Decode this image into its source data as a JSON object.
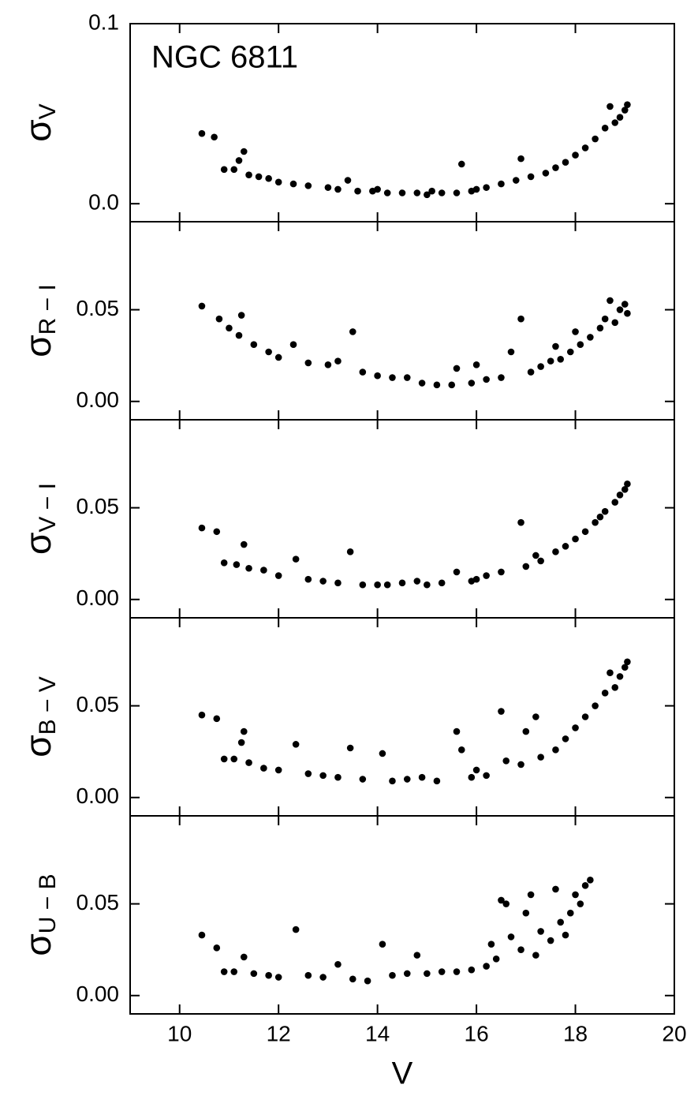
{
  "chart_data": [
    {
      "type": "scatter",
      "annotation": "NGC 6811",
      "ylabel": "σ",
      "ylabel_sub": "V",
      "color": "#000000",
      "xlim": [
        9,
        20
      ],
      "xticks": [
        10,
        12,
        14,
        16,
        18,
        20
      ],
      "ylim": [
        -0.01,
        0.1
      ],
      "yticks": [
        {
          "value": 0,
          "label": "0.0"
        },
        0.1
      ],
      "x": [
        10.45,
        10.7,
        10.9,
        11.1,
        11.2,
        11.3,
        11.4,
        11.6,
        11.8,
        12.0,
        12.3,
        12.6,
        13.0,
        13.2,
        13.4,
        13.6,
        13.9,
        14.2,
        14.5,
        14.8,
        15.0,
        15.3,
        15.6,
        15.7,
        15.9,
        16.2,
        16.5,
        16.8,
        16.9,
        17.1,
        17.4,
        17.6,
        17.8,
        18.0,
        18.2,
        18.4,
        18.6,
        18.7,
        18.8,
        18.9,
        19.0,
        19.05,
        14.0,
        15.1,
        16.0
      ],
      "values": [
        0.039,
        0.037,
        0.019,
        0.019,
        0.024,
        0.029,
        0.016,
        0.015,
        0.014,
        0.012,
        0.011,
        0.01,
        0.009,
        0.008,
        0.013,
        0.007,
        0.007,
        0.006,
        0.006,
        0.006,
        0.005,
        0.006,
        0.006,
        0.022,
        0.007,
        0.009,
        0.011,
        0.013,
        0.025,
        0.015,
        0.017,
        0.02,
        0.023,
        0.027,
        0.031,
        0.036,
        0.042,
        0.054,
        0.045,
        0.048,
        0.052,
        0.055,
        0.008,
        0.007,
        0.008
      ]
    },
    {
      "type": "scatter",
      "ylabel": "σ",
      "ylabel_sub": "R − I",
      "color": "#000000",
      "xlim": [
        9,
        20
      ],
      "xticks": [
        10,
        12,
        14,
        16,
        18,
        20
      ],
      "ylim": [
        -0.01,
        0.098
      ],
      "yticks": [
        {
          "value": 0,
          "label": "0.00"
        },
        0.05
      ],
      "x": [
        10.45,
        10.8,
        11.0,
        11.2,
        11.25,
        11.5,
        11.8,
        12.0,
        12.3,
        12.6,
        13.0,
        13.2,
        13.5,
        13.7,
        14.0,
        14.3,
        14.6,
        14.9,
        15.2,
        15.5,
        15.6,
        15.9,
        16.2,
        16.5,
        16.7,
        16.9,
        17.1,
        17.3,
        17.5,
        17.7,
        17.9,
        18.1,
        18.3,
        18.5,
        18.6,
        18.7,
        18.8,
        18.9,
        19.0,
        19.05,
        16.0,
        17.6,
        18.0
      ],
      "values": [
        0.052,
        0.045,
        0.04,
        0.036,
        0.047,
        0.031,
        0.027,
        0.024,
        0.031,
        0.021,
        0.02,
        0.022,
        0.038,
        0.016,
        0.014,
        0.013,
        0.013,
        0.01,
        0.009,
        0.009,
        0.018,
        0.01,
        0.012,
        0.013,
        0.027,
        0.045,
        0.016,
        0.019,
        0.022,
        0.023,
        0.027,
        0.031,
        0.035,
        0.04,
        0.045,
        0.055,
        0.043,
        0.05,
        0.053,
        0.048,
        0.02,
        0.03,
        0.038
      ]
    },
    {
      "type": "scatter",
      "ylabel": "σ",
      "ylabel_sub": "V − I",
      "color": "#000000",
      "xlim": [
        9,
        20
      ],
      "xticks": [
        10,
        12,
        14,
        16,
        18,
        20
      ],
      "ylim": [
        -0.01,
        0.098
      ],
      "yticks": [
        {
          "value": 0,
          "label": "0.00"
        },
        0.05
      ],
      "x": [
        10.45,
        10.75,
        10.9,
        11.15,
        11.3,
        11.4,
        11.7,
        12.0,
        12.35,
        12.6,
        12.9,
        13.2,
        13.45,
        13.7,
        14.0,
        14.2,
        14.5,
        14.8,
        15.0,
        15.3,
        15.6,
        15.9,
        16.2,
        16.5,
        16.9,
        17.0,
        17.3,
        17.6,
        17.8,
        18.0,
        18.2,
        18.4,
        18.6,
        18.8,
        18.9,
        19.0,
        19.05,
        16.0,
        17.2,
        18.5
      ],
      "values": [
        0.039,
        0.037,
        0.02,
        0.019,
        0.03,
        0.017,
        0.016,
        0.013,
        0.022,
        0.011,
        0.01,
        0.009,
        0.026,
        0.008,
        0.008,
        0.008,
        0.009,
        0.01,
        0.008,
        0.009,
        0.015,
        0.01,
        0.013,
        0.015,
        0.042,
        0.018,
        0.021,
        0.026,
        0.029,
        0.033,
        0.037,
        0.042,
        0.048,
        0.053,
        0.057,
        0.06,
        0.063,
        0.011,
        0.024,
        0.045
      ]
    },
    {
      "type": "scatter",
      "ylabel": "σ",
      "ylabel_sub": "B − V",
      "color": "#000000",
      "xlim": [
        9,
        20
      ],
      "xticks": [
        10,
        12,
        14,
        16,
        18,
        20
      ],
      "ylim": [
        -0.01,
        0.098
      ],
      "yticks": [
        {
          "value": 0,
          "label": "0.00"
        },
        0.05
      ],
      "x": [
        10.45,
        10.75,
        10.9,
        11.1,
        11.25,
        11.3,
        11.4,
        11.7,
        12.0,
        12.35,
        12.6,
        12.9,
        13.2,
        13.45,
        13.7,
        14.1,
        14.3,
        14.6,
        14.9,
        15.2,
        15.6,
        15.7,
        15.9,
        16.2,
        16.5,
        16.6,
        16.9,
        17.0,
        17.2,
        17.3,
        17.6,
        17.8,
        18.0,
        18.2,
        18.4,
        18.6,
        18.7,
        18.8,
        18.9,
        19.0,
        19.05,
        16.0
      ],
      "values": [
        0.045,
        0.043,
        0.021,
        0.021,
        0.03,
        0.036,
        0.019,
        0.016,
        0.015,
        0.029,
        0.013,
        0.012,
        0.011,
        0.027,
        0.01,
        0.024,
        0.009,
        0.01,
        0.011,
        0.009,
        0.036,
        0.026,
        0.011,
        0.012,
        0.047,
        0.02,
        0.018,
        0.036,
        0.044,
        0.022,
        0.026,
        0.032,
        0.038,
        0.044,
        0.05,
        0.057,
        0.068,
        0.06,
        0.066,
        0.071,
        0.074,
        0.015
      ]
    },
    {
      "type": "scatter",
      "ylabel": "σ",
      "ylabel_sub": "U − B",
      "xlabel": "V",
      "color": "#000000",
      "xlim": [
        9,
        20
      ],
      "xticks": [
        10,
        12,
        14,
        16,
        18,
        20
      ],
      "ylim": [
        -0.01,
        0.098
      ],
      "yticks": [
        {
          "value": 0,
          "label": "0.00"
        },
        0.05
      ],
      "x": [
        10.45,
        10.75,
        10.9,
        11.1,
        11.3,
        11.5,
        11.8,
        12.0,
        12.35,
        12.6,
        12.9,
        13.2,
        13.5,
        13.8,
        14.1,
        14.3,
        14.6,
        14.8,
        15.0,
        15.3,
        15.6,
        15.9,
        16.2,
        16.4,
        16.5,
        16.6,
        16.7,
        16.9,
        17.0,
        17.1,
        17.3,
        17.5,
        17.6,
        17.7,
        17.9,
        18.0,
        18.1,
        18.2,
        18.3,
        16.3,
        17.2,
        17.8
      ],
      "values": [
        0.033,
        0.026,
        0.013,
        0.013,
        0.021,
        0.012,
        0.011,
        0.01,
        0.036,
        0.011,
        0.01,
        0.017,
        0.009,
        0.008,
        0.028,
        0.011,
        0.012,
        0.022,
        0.012,
        0.013,
        0.013,
        0.014,
        0.016,
        0.02,
        0.052,
        0.05,
        0.032,
        0.025,
        0.045,
        0.055,
        0.035,
        0.03,
        0.058,
        0.04,
        0.045,
        0.055,
        0.05,
        0.06,
        0.063,
        0.028,
        0.022,
        0.033
      ]
    }
  ]
}
